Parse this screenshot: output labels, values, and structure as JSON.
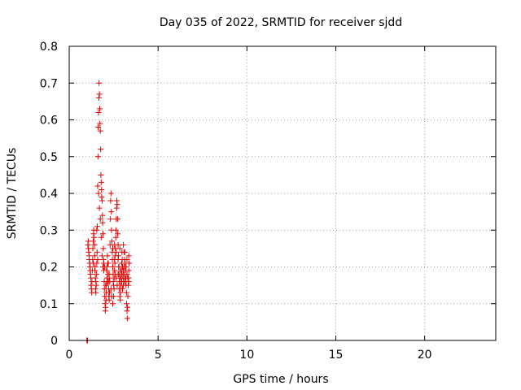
{
  "chart_data": {
    "type": "scatter",
    "title": "Day 035 of 2022, SRMTID for receiver sjdd",
    "xlabel": "GPS time / hours",
    "ylabel": "SRMTID / TECUs",
    "xlim": [
      0,
      24
    ],
    "ylim": [
      0,
      0.8
    ],
    "xticks": [
      0,
      5,
      10,
      15,
      20
    ],
    "yticks": [
      0,
      0.1,
      0.2,
      0.3,
      0.4,
      0.5,
      0.6,
      0.7,
      0.8
    ],
    "xtick_labels": [
      "0",
      "5",
      "10",
      "15",
      "20"
    ],
    "ytick_labels": [
      "0",
      "0.1",
      "0.2",
      "0.3",
      "0.4",
      "0.5",
      "0.6",
      "0.7",
      "0.8"
    ],
    "grid": true,
    "marker": "+",
    "color": "#e00000",
    "series": [
      {
        "name": "SRMTID",
        "points": [
          [
            1.0,
            0.0
          ],
          [
            1.0,
            0.0
          ],
          [
            1.03,
            0.0
          ],
          [
            1.05,
            0.26
          ],
          [
            1.07,
            0.27
          ],
          [
            1.08,
            0.25
          ],
          [
            1.1,
            0.24
          ],
          [
            1.12,
            0.23
          ],
          [
            1.13,
            0.22
          ],
          [
            1.15,
            0.21
          ],
          [
            1.17,
            0.2
          ],
          [
            1.18,
            0.19
          ],
          [
            1.2,
            0.18
          ],
          [
            1.22,
            0.17
          ],
          [
            1.23,
            0.15
          ],
          [
            1.25,
            0.14
          ],
          [
            1.27,
            0.13
          ],
          [
            1.28,
            0.16
          ],
          [
            1.3,
            0.19
          ],
          [
            1.32,
            0.22
          ],
          [
            1.33,
            0.25
          ],
          [
            1.35,
            0.27
          ],
          [
            1.37,
            0.29
          ],
          [
            1.38,
            0.3
          ],
          [
            1.4,
            0.28
          ],
          [
            1.42,
            0.26
          ],
          [
            1.43,
            0.23
          ],
          [
            1.45,
            0.2
          ],
          [
            1.47,
            0.17
          ],
          [
            1.48,
            0.14
          ],
          [
            1.5,
            0.13
          ],
          [
            1.52,
            0.15
          ],
          [
            1.53,
            0.18
          ],
          [
            1.55,
            0.21
          ],
          [
            1.57,
            0.24
          ],
          [
            1.58,
            0.31
          ],
          [
            1.6,
            0.42
          ],
          [
            1.62,
            0.5
          ],
          [
            1.63,
            0.58
          ],
          [
            1.65,
            0.62
          ],
          [
            1.67,
            0.66
          ],
          [
            1.68,
            0.7
          ],
          [
            1.7,
            0.67
          ],
          [
            1.72,
            0.63
          ],
          [
            1.73,
            0.59
          ],
          [
            1.75,
            0.57
          ],
          [
            1.77,
            0.52
          ],
          [
            1.78,
            0.45
          ],
          [
            1.8,
            0.43
          ],
          [
            1.82,
            0.41
          ],
          [
            1.83,
            0.39
          ],
          [
            1.85,
            0.38
          ],
          [
            1.87,
            0.34
          ],
          [
            1.88,
            0.32
          ],
          [
            1.9,
            0.29
          ],
          [
            1.92,
            0.25
          ],
          [
            1.93,
            0.22
          ],
          [
            1.95,
            0.19
          ],
          [
            1.97,
            0.16
          ],
          [
            1.98,
            0.14
          ],
          [
            2.0,
            0.12
          ],
          [
            2.02,
            0.1
          ],
          [
            2.03,
            0.08
          ],
          [
            2.05,
            0.09
          ],
          [
            2.07,
            0.11
          ],
          [
            2.08,
            0.13
          ],
          [
            2.1,
            0.15
          ],
          [
            2.12,
            0.17
          ],
          [
            2.13,
            0.2
          ],
          [
            2.15,
            0.23
          ],
          [
            2.17,
            0.21
          ],
          [
            2.18,
            0.18
          ],
          [
            2.2,
            0.16
          ],
          [
            2.22,
            0.14
          ],
          [
            2.23,
            0.12
          ],
          [
            2.25,
            0.11
          ],
          [
            2.27,
            0.13
          ],
          [
            2.28,
            0.16
          ],
          [
            2.3,
            0.26
          ],
          [
            2.32,
            0.33
          ],
          [
            2.33,
            0.38
          ],
          [
            2.35,
            0.4
          ],
          [
            2.37,
            0.35
          ],
          [
            2.38,
            0.3
          ],
          [
            2.4,
            0.27
          ],
          [
            2.42,
            0.24
          ],
          [
            2.43,
            0.22
          ],
          [
            2.45,
            0.2
          ],
          [
            2.47,
            0.18
          ],
          [
            2.48,
            0.16
          ],
          [
            2.5,
            0.15
          ],
          [
            2.52,
            0.14
          ],
          [
            2.53,
            0.17
          ],
          [
            2.55,
            0.19
          ],
          [
            2.57,
            0.21
          ],
          [
            2.58,
            0.23
          ],
          [
            2.6,
            0.25
          ],
          [
            2.62,
            0.28
          ],
          [
            2.63,
            0.3
          ],
          [
            2.65,
            0.33
          ],
          [
            2.67,
            0.36
          ],
          [
            2.68,
            0.38
          ],
          [
            2.7,
            0.37
          ],
          [
            2.72,
            0.33
          ],
          [
            2.73,
            0.29
          ],
          [
            2.75,
            0.26
          ],
          [
            2.77,
            0.23
          ],
          [
            2.78,
            0.2
          ],
          [
            2.8,
            0.18
          ],
          [
            2.82,
            0.16
          ],
          [
            2.83,
            0.14
          ],
          [
            2.85,
            0.12
          ],
          [
            2.87,
            0.11
          ],
          [
            2.88,
            0.13
          ],
          [
            2.9,
            0.15
          ],
          [
            2.92,
            0.17
          ],
          [
            2.93,
            0.19
          ],
          [
            2.95,
            0.21
          ],
          [
            2.97,
            0.24
          ],
          [
            2.98,
            0.22
          ],
          [
            3.0,
            0.2
          ],
          [
            3.02,
            0.18
          ],
          [
            3.03,
            0.17
          ],
          [
            3.05,
            0.15
          ],
          [
            3.07,
            0.16
          ],
          [
            3.08,
            0.18
          ],
          [
            3.1,
            0.2
          ],
          [
            3.12,
            0.22
          ],
          [
            3.13,
            0.24
          ],
          [
            3.15,
            0.21
          ],
          [
            3.17,
            0.19
          ],
          [
            3.18,
            0.17
          ],
          [
            3.2,
            0.15
          ],
          [
            3.22,
            0.13
          ],
          [
            3.23,
            0.1
          ],
          [
            3.25,
            0.08
          ],
          [
            3.27,
            0.06
          ],
          [
            3.28,
            0.09
          ],
          [
            3.3,
            0.12
          ],
          [
            3.32,
            0.15
          ],
          [
            3.33,
            0.17
          ],
          [
            3.35,
            0.19
          ],
          [
            3.37,
            0.21
          ],
          [
            1.55,
            0.3
          ],
          [
            1.6,
            0.22
          ],
          [
            1.65,
            0.4
          ],
          [
            1.7,
            0.36
          ],
          [
            1.75,
            0.33
          ],
          [
            1.8,
            0.28
          ],
          [
            1.85,
            0.23
          ],
          [
            1.9,
            0.2
          ],
          [
            1.95,
            0.21
          ],
          [
            2.0,
            0.2
          ],
          [
            2.05,
            0.15
          ],
          [
            2.1,
            0.19
          ],
          [
            2.2,
            0.21
          ],
          [
            2.25,
            0.17
          ],
          [
            2.35,
            0.14
          ],
          [
            2.4,
            0.12
          ],
          [
            2.45,
            0.1
          ],
          [
            2.5,
            0.12
          ],
          [
            2.55,
            0.22
          ],
          [
            2.6,
            0.18
          ],
          [
            2.65,
            0.17
          ],
          [
            2.7,
            0.15
          ],
          [
            2.75,
            0.18
          ],
          [
            2.8,
            0.2
          ],
          [
            2.85,
            0.17
          ],
          [
            2.9,
            0.19
          ],
          [
            2.95,
            0.16
          ],
          [
            3.0,
            0.14
          ],
          [
            3.05,
            0.26
          ],
          [
            3.1,
            0.24
          ],
          [
            3.15,
            0.17
          ],
          [
            3.2,
            0.2
          ],
          [
            3.25,
            0.22
          ],
          [
            3.3,
            0.17
          ],
          [
            3.35,
            0.16
          ],
          [
            2.45,
            0.25
          ],
          [
            2.55,
            0.26
          ],
          [
            2.65,
            0.24
          ],
          [
            2.75,
            0.22
          ],
          [
            2.85,
            0.25
          ],
          [
            2.95,
            0.18
          ],
          [
            3.05,
            0.19
          ],
          [
            3.15,
            0.16
          ],
          [
            3.25,
            0.18
          ],
          [
            3.35,
            0.23
          ],
          [
            2.15,
            0.16
          ],
          [
            2.25,
            0.18
          ],
          [
            1.45,
            0.19
          ],
          [
            1.5,
            0.16
          ],
          [
            1.35,
            0.21
          ]
        ]
      }
    ]
  }
}
